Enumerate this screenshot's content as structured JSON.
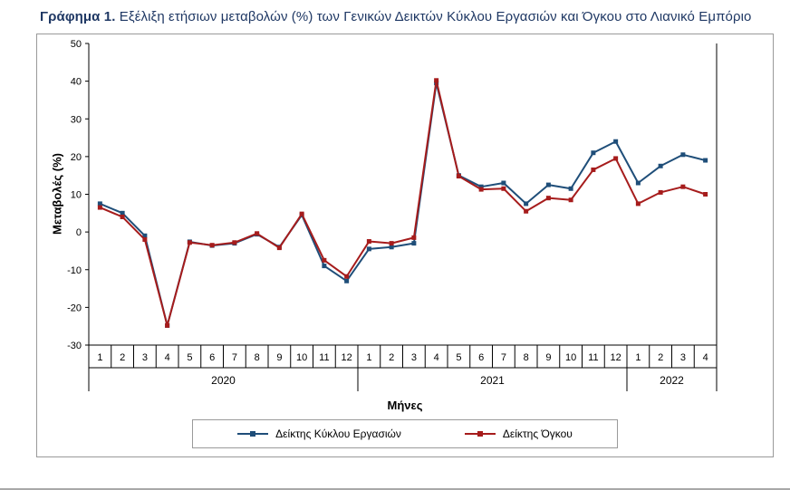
{
  "title": {
    "prefix": "Γράφημα 1.",
    "rest": " Εξέλιξη ετήσιων μεταβολών (%) των Γενικών Δεικτών Κύκλου Εργασιών και Όγκου στο Λιανικό Εμπόριο"
  },
  "chart_data": {
    "type": "line",
    "title": "Εξέλιξη ετήσιων μεταβολών (%) των Γενικών Δεικτών Κύκλου Εργασιών και Όγκου στο Λιανικό Εμπόριο",
    "xlabel": "Μήνες",
    "ylabel": "Μεταβολές (%)",
    "ylim": [
      -30,
      50
    ],
    "ytick_step": 10,
    "grid": false,
    "legend_position": "bottom",
    "x_labels": [
      "1",
      "2",
      "3",
      "4",
      "5",
      "6",
      "7",
      "8",
      "9",
      "10",
      "11",
      "12",
      "1",
      "2",
      "3",
      "4",
      "5",
      "6",
      "7",
      "8",
      "9",
      "10",
      "11",
      "12",
      "1",
      "2",
      "3",
      "4"
    ],
    "year_groups": [
      {
        "label": "2020",
        "count": 12
      },
      {
        "label": "2021",
        "count": 12
      },
      {
        "label": "2022",
        "count": 4
      }
    ],
    "series": [
      {
        "name": "Δείκτης Κύκλου Εργασιών",
        "color": "#1F4E79",
        "values": [
          7.5,
          5.0,
          -1.0,
          -24.8,
          -2.6,
          -3.6,
          -3.0,
          -0.6,
          -4.0,
          4.5,
          -9.0,
          -13.0,
          -4.5,
          -4.0,
          -3.0,
          39.5,
          15.0,
          12.0,
          13.0,
          7.5,
          12.5,
          11.5,
          21.0,
          24.0,
          13.0,
          17.5,
          20.5,
          19.0
        ]
      },
      {
        "name": "Δείκτης Όγκου",
        "color": "#A61C1C",
        "values": [
          6.5,
          4.0,
          -2.0,
          -24.8,
          -2.8,
          -3.5,
          -2.8,
          -0.4,
          -4.2,
          4.8,
          -7.5,
          -11.8,
          -2.5,
          -3.0,
          -1.5,
          40.2,
          14.8,
          11.3,
          11.5,
          5.5,
          9.0,
          8.5,
          16.5,
          19.5,
          7.5,
          10.5,
          12.0,
          10.0
        ]
      }
    ]
  }
}
